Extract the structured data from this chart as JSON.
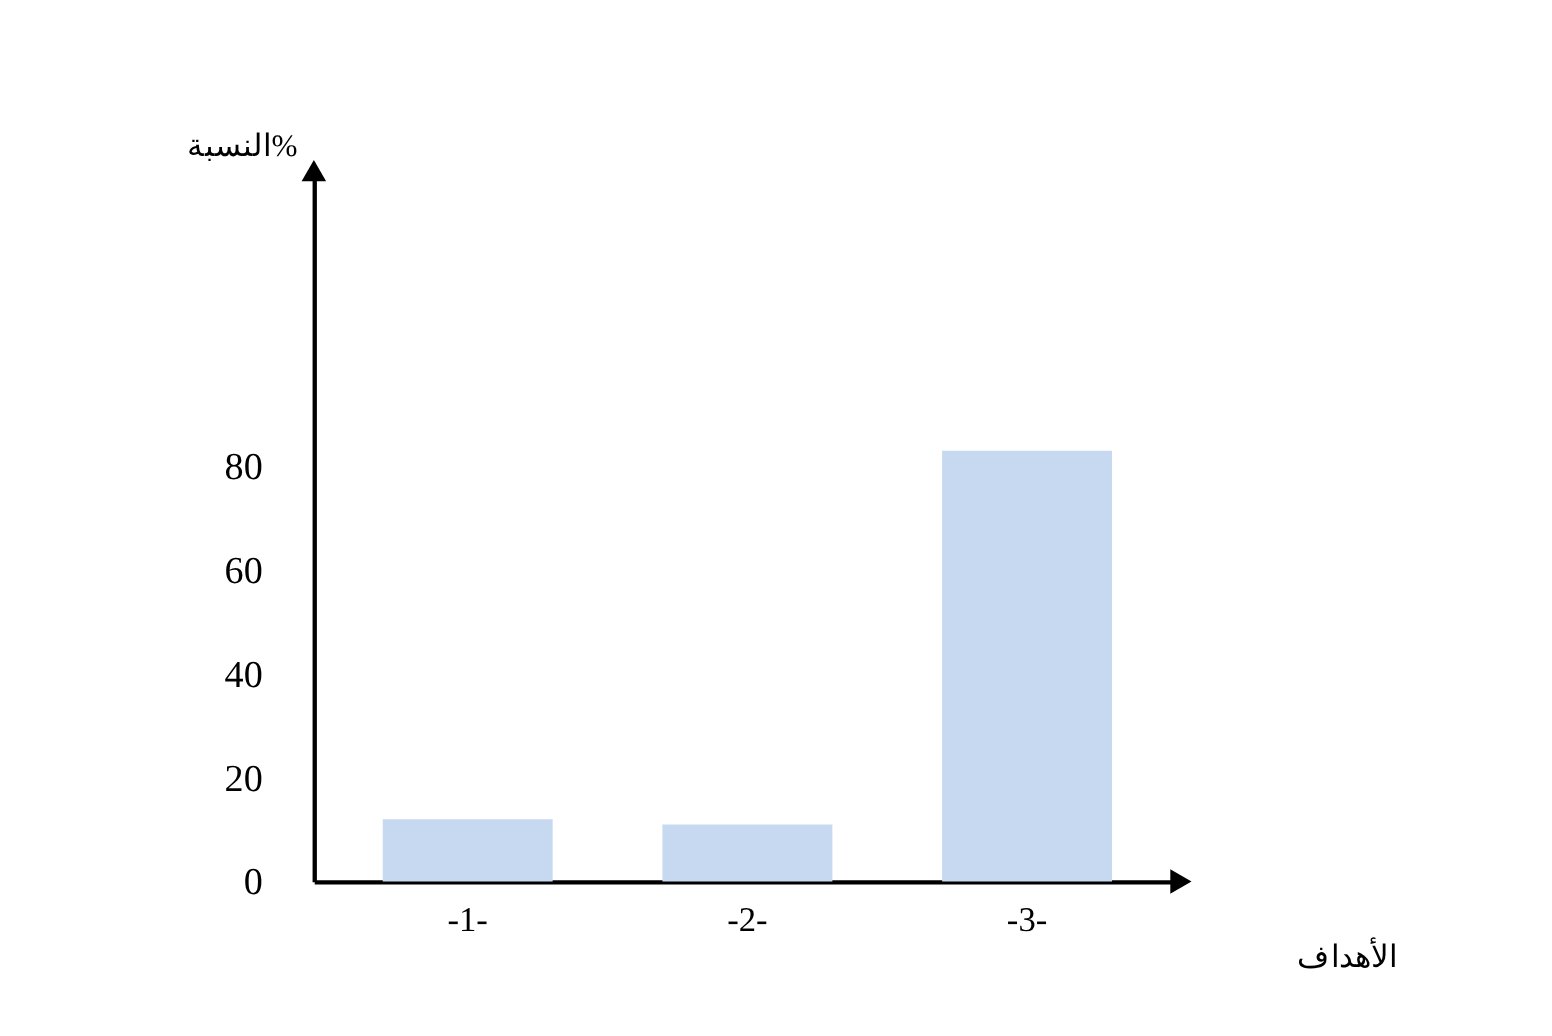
{
  "chart_data": {
    "type": "bar",
    "xlabel": "الأهداف",
    "ylabel": "النسبة%",
    "categories": [
      "-1-",
      "-2-",
      "-3-"
    ],
    "values": [
      12,
      11,
      83
    ],
    "color": "#c6d9f1",
    "ylim": [
      0,
      137
    ],
    "yticks": [
      0,
      20,
      40,
      60,
      80
    ],
    "grid": false
  }
}
